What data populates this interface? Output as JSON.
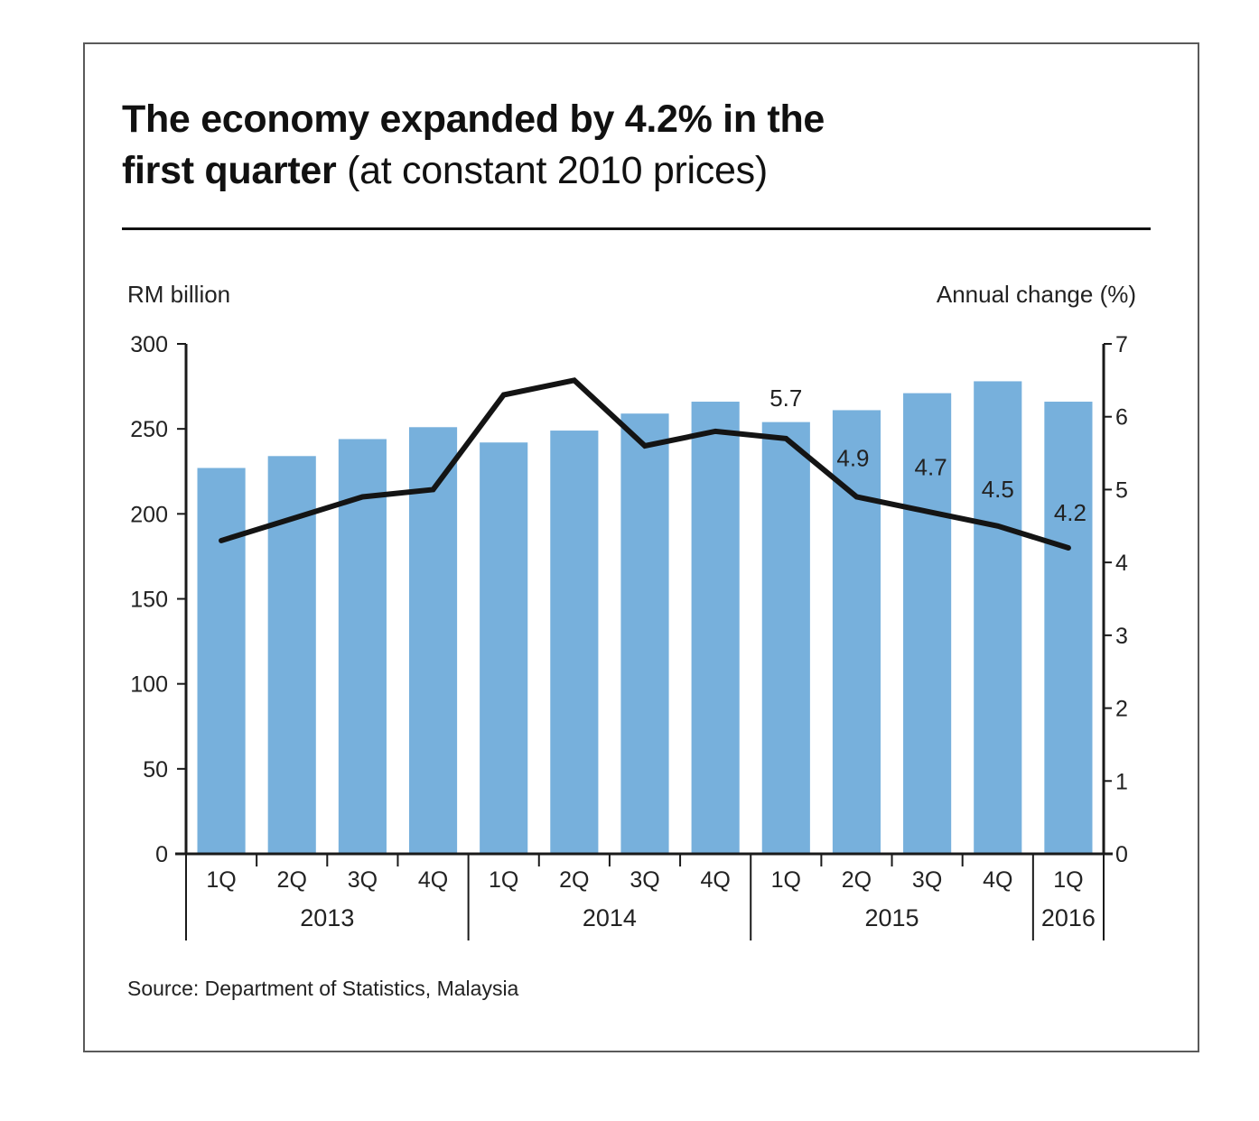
{
  "title_bold": "The economy expanded by 4.2% in the first quarter",
  "title_line1": "The economy expanded by 4.2% in the",
  "title_line2_bold": "first quarter",
  "title_line2_normal": "(at constant 2010 prices)",
  "source": "Source: Department of Statistics, Malaysia",
  "colors": {
    "bar": "#77b0dc",
    "line": "#141414",
    "axis": "#1a1a1a",
    "frame": "#5a5a5a"
  },
  "chart_data": {
    "type": "bar",
    "title": "The economy expanded by 4.2% in the first quarter (at constant 2010 prices)",
    "categories": [
      "1Q",
      "2Q",
      "3Q",
      "4Q",
      "1Q",
      "2Q",
      "3Q",
      "4Q",
      "1Q",
      "2Q",
      "3Q",
      "4Q",
      "1Q"
    ],
    "year_groups": [
      {
        "label": "2013",
        "count": 4
      },
      {
        "label": "2014",
        "count": 4
      },
      {
        "label": "2015",
        "count": 4
      },
      {
        "label": "2016",
        "count": 1
      }
    ],
    "ylabel": "RM billion",
    "y2label": "Annual change (%)",
    "ylim": [
      0,
      300
    ],
    "yticks": [
      0,
      50,
      100,
      150,
      200,
      250,
      300
    ],
    "y2lim": [
      0,
      7
    ],
    "y2ticks": [
      0,
      1,
      2,
      3,
      4,
      5,
      6,
      7
    ],
    "grid": false,
    "series": [
      {
        "name": "RM billion",
        "type": "bar",
        "axis": "left",
        "values": [
          227,
          234,
          244,
          251,
          242,
          249,
          259,
          266,
          254,
          261,
          271,
          278,
          266
        ]
      },
      {
        "name": "Annual change (%)",
        "type": "line",
        "axis": "right",
        "values": [
          4.3,
          4.6,
          4.9,
          5.0,
          6.3,
          6.5,
          5.6,
          5.8,
          5.7,
          4.9,
          4.7,
          4.5,
          4.2
        ],
        "data_labels": [
          null,
          null,
          null,
          null,
          null,
          null,
          null,
          null,
          "5.7",
          "4.9",
          "4.7",
          "4.5",
          "4.2"
        ]
      }
    ]
  }
}
